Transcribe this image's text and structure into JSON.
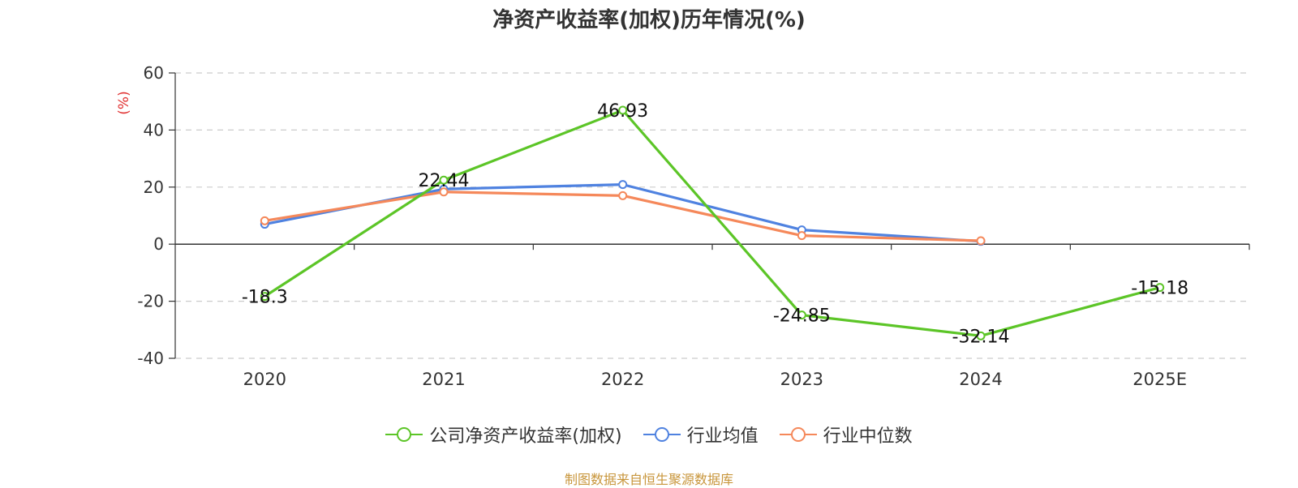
{
  "chart_data": {
    "type": "line",
    "title": "净资产收益率(加权)历年情况(%)",
    "ylabel": "(%)",
    "xlabel": "",
    "categories": [
      "2020",
      "2021",
      "2022",
      "2023",
      "2024",
      "2025E"
    ],
    "ylim": [
      -40,
      60
    ],
    "yticks": [
      60,
      40,
      20,
      0,
      -20,
      -40
    ],
    "grid": true,
    "legend_position": "bottom",
    "series": [
      {
        "name": "公司净资产收益率(加权)",
        "color": "#5cc527",
        "values": [
          -18.3,
          22.44,
          46.93,
          -24.85,
          -32.14,
          -15.18
        ],
        "labels": [
          "-18.3",
          "22.44",
          "46.93",
          "-24.85",
          "-32.14",
          "-15.18"
        ]
      },
      {
        "name": "行业均值",
        "color": "#4f82e0",
        "values": [
          7.0,
          19.3,
          20.9,
          5.0,
          1.0,
          null
        ]
      },
      {
        "name": "行业中位数",
        "color": "#f5885a",
        "values": [
          8.2,
          18.3,
          17.0,
          3.0,
          1.2,
          null
        ]
      }
    ]
  },
  "source": "制图数据来自恒生聚源数据库",
  "colors": {
    "axis": "#333333",
    "grid": "#cccccc",
    "ylabel": "#e03030",
    "source": "#c8963c"
  }
}
